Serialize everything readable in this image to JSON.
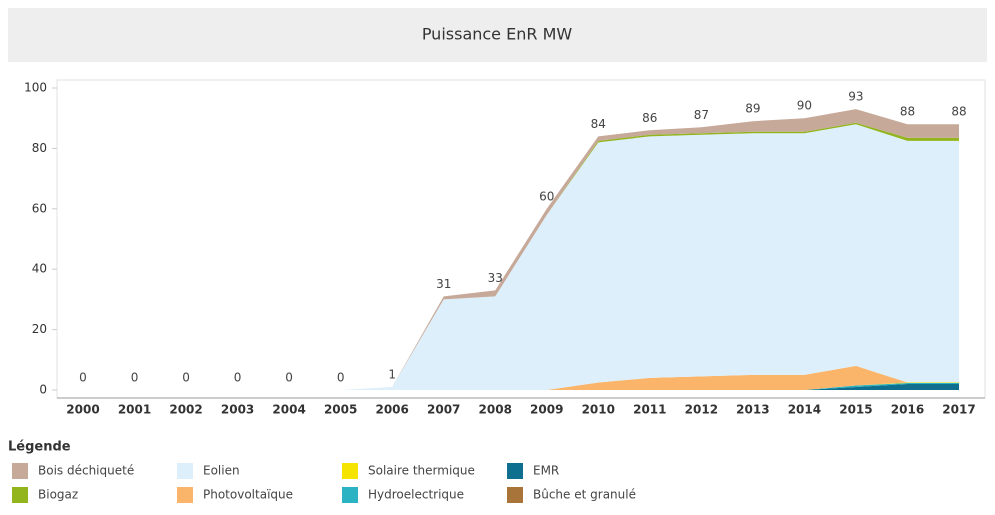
{
  "chart_data": {
    "type": "stacked_area",
    "title": "Puissance EnR MW",
    "legend_title": "Légende",
    "categories": [
      "2000",
      "2001",
      "2002",
      "2003",
      "2004",
      "2005",
      "2006",
      "2007",
      "2008",
      "2009",
      "2010",
      "2011",
      "2012",
      "2013",
      "2014",
      "2015",
      "2016",
      "2017"
    ],
    "series": [
      {
        "name": "Bois déchiqueté",
        "color": "#c6a999",
        "values": [
          0,
          0,
          0,
          0,
          0,
          0,
          0,
          1,
          2,
          2,
          1.5,
          1.5,
          2,
          3.5,
          4.5,
          4.5,
          4.5,
          4.5
        ]
      },
      {
        "name": "Eolien",
        "color": "#ddeffa",
        "values": [
          0,
          0,
          0,
          0,
          0,
          0,
          1,
          30,
          31,
          58,
          79.5,
          80,
          80,
          80,
          80,
          80,
          80,
          80
        ]
      },
      {
        "name": "Solaire thermique",
        "color": "#f5e400",
        "values": [
          0,
          0,
          0,
          0,
          0,
          0,
          0,
          0,
          0,
          0,
          0,
          0,
          0,
          0,
          0,
          0,
          0.2,
          0.2
        ]
      },
      {
        "name": "EMR",
        "color": "#0e6f8e",
        "values": [
          0,
          0,
          0,
          0,
          0,
          0,
          0,
          0,
          0,
          0,
          0,
          0,
          0,
          0,
          0,
          1,
          2,
          2
        ]
      },
      {
        "name": "Biogaz",
        "color": "#92b51e",
        "values": [
          0,
          0,
          0,
          0,
          0,
          0,
          0,
          0,
          0,
          0,
          0.5,
          0.5,
          0.5,
          0.5,
          0.5,
          0.5,
          1,
          1
        ]
      },
      {
        "name": "Photovoltaïque",
        "color": "#fbb56b",
        "values": [
          0,
          0,
          0,
          0,
          0,
          0,
          0,
          0,
          0,
          0,
          2.5,
          4,
          4.5,
          5,
          5,
          6.5,
          0,
          0
        ]
      },
      {
        "name": "Hydroelectrique",
        "color": "#2bb3c4",
        "values": [
          0,
          0,
          0,
          0,
          0,
          0,
          0,
          0,
          0,
          0,
          0,
          0,
          0,
          0,
          0,
          0.5,
          0.3,
          0.3
        ]
      },
      {
        "name": "Bûche et granulé",
        "color": "#a8743a",
        "values": [
          0,
          0,
          0,
          0,
          0,
          0,
          0,
          0,
          0,
          0,
          0,
          0,
          0,
          0,
          0,
          0,
          0,
          0
        ]
      }
    ],
    "totals": [
      0,
      0,
      0,
      0,
      0,
      0,
      1,
      31,
      33,
      60,
      84,
      86,
      87,
      89,
      90,
      93,
      88,
      88
    ],
    "ylim": [
      0,
      100
    ],
    "yticks": [
      0,
      20,
      40,
      60,
      80,
      100
    ]
  }
}
